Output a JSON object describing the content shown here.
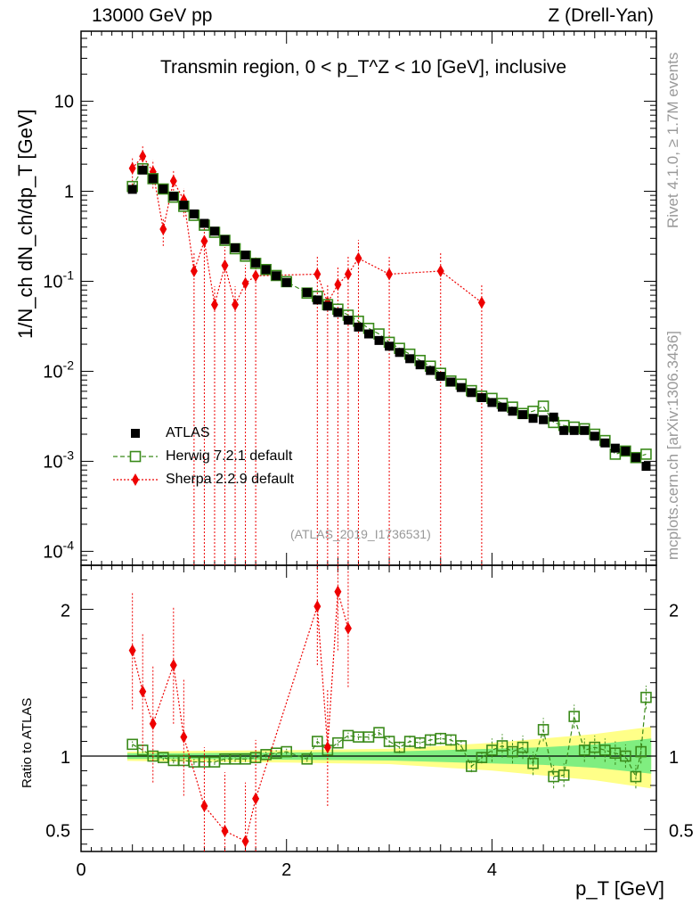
{
  "header": {
    "left": "13000 GeV pp",
    "right": "Z (Drell-Yan)",
    "main_title": "Transmin region, 0 < p_T^Z < 10 [GeV], inclusive",
    "watermark": "(ATLAS_2019_I1736531)"
  },
  "side_labels": {
    "rivet": "Rivet 4.1.0, ≥ 1.7M events",
    "mcplots": "mcplots.cern.ch [arXiv:1306.3436]"
  },
  "legend": {
    "data": "ATLAS",
    "herwig": "Herwig 7.2.1 default",
    "sherpa": "Sherpa 2.2.9 default"
  },
  "colors": {
    "data": "#000000",
    "herwig": "#3a8a1a",
    "sherpa": "#ee0000",
    "band_inner": "#80ee80",
    "band_outer": "#ffff88"
  },
  "chart_data": {
    "type": "scatter",
    "main_panel": {
      "xlabel": "p_T [GeV]",
      "ylabel": "1/N_ch dN_ch/dp_T [GeV]",
      "xlim": [
        0,
        5.6
      ],
      "ylim": [
        7e-05,
        60
      ],
      "yscale": "log",
      "yticks": [
        0.0001,
        0.001,
        0.01,
        0.1,
        1,
        10
      ],
      "ytick_labels": [
        "10^-4",
        "10^-3",
        "10^-2",
        "10^-1",
        "1",
        "10"
      ],
      "series": [
        {
          "name": "ATLAS",
          "x": [
            0.5,
            0.6,
            0.7,
            0.8,
            0.9,
            1.0,
            1.1,
            1.2,
            1.3,
            1.4,
            1.5,
            1.6,
            1.7,
            1.8,
            1.9,
            2.0,
            2.2,
            2.3,
            2.4,
            2.5,
            2.6,
            2.7,
            2.8,
            2.9,
            3.0,
            3.1,
            3.2,
            3.3,
            3.4,
            3.5,
            3.6,
            3.7,
            3.8,
            3.9,
            4.0,
            4.1,
            4.2,
            4.3,
            4.4,
            4.5,
            4.6,
            4.7,
            4.8,
            4.9,
            5.0,
            5.1,
            5.2,
            5.3,
            5.4,
            5.5
          ],
          "y": [
            1.05,
            1.72,
            1.38,
            1.06,
            0.88,
            0.7,
            0.56,
            0.44,
            0.36,
            0.29,
            0.235,
            0.195,
            0.16,
            0.135,
            0.115,
            0.097,
            0.075,
            0.062,
            0.053,
            0.045,
            0.037,
            0.031,
            0.026,
            0.022,
            0.019,
            0.0162,
            0.0138,
            0.0118,
            0.0102,
            0.0088,
            0.0076,
            0.0066,
            0.0058,
            0.0051,
            0.0045,
            0.004,
            0.0036,
            0.0033,
            0.003,
            0.0029,
            0.0031,
            0.0022,
            0.0022,
            0.0022,
            0.0019,
            0.0016,
            0.0014,
            0.0013,
            0.0011,
            0.00088
          ]
        },
        {
          "name": "Herwig 7.2.1 default",
          "x": [
            0.5,
            0.6,
            0.7,
            0.8,
            0.9,
            1.0,
            1.1,
            1.2,
            1.3,
            1.4,
            1.5,
            1.6,
            1.7,
            1.8,
            1.9,
            2.0,
            2.2,
            2.3,
            2.4,
            2.5,
            2.6,
            2.7,
            2.8,
            2.9,
            3.0,
            3.1,
            3.2,
            3.3,
            3.4,
            3.5,
            3.6,
            3.7,
            3.8,
            3.9,
            4.0,
            4.1,
            4.2,
            4.3,
            4.4,
            4.5,
            4.6,
            4.7,
            4.8,
            4.9,
            5.0,
            5.1,
            5.2,
            5.3,
            5.4,
            5.5
          ],
          "y": [
            1.13,
            1.78,
            1.38,
            1.06,
            0.86,
            0.68,
            0.54,
            0.42,
            0.35,
            0.285,
            0.23,
            0.19,
            0.158,
            0.135,
            0.116,
            0.099,
            0.074,
            0.068,
            0.055,
            0.049,
            0.042,
            0.036,
            0.03,
            0.026,
            0.021,
            0.018,
            0.0155,
            0.0132,
            0.0114,
            0.0095,
            0.0078,
            0.0072,
            0.0061,
            0.0053,
            0.005,
            0.0044,
            0.004,
            0.0034,
            0.0036,
            0.0041,
            0.0027,
            0.0025,
            0.0024,
            0.0023,
            0.002,
            0.0017,
            0.0012,
            0.0013,
            0.0011,
            0.0012
          ]
        },
        {
          "name": "Sherpa 2.2.9 default",
          "x": [
            0.5,
            0.6,
            0.7,
            0.8,
            0.9,
            1.0,
            1.1,
            1.2,
            1.3,
            1.4,
            1.5,
            1.6,
            1.7,
            2.3,
            2.4,
            2.5,
            2.6,
            2.7,
            3.0,
            3.5,
            3.9
          ],
          "y": [
            1.8,
            2.45,
            1.65,
            0.38,
            1.3,
            0.8,
            0.13,
            0.28,
            0.055,
            0.15,
            0.055,
            0.095,
            0.115,
            0.12,
            0.058,
            0.092,
            0.12,
            0.18,
            0.12,
            0.13,
            0.058
          ]
        }
      ]
    },
    "ratio_panel": {
      "ylabel": "Ratio to ATLAS",
      "ylim": [
        0.35,
        2.3
      ],
      "yticks": [
        0.5,
        1,
        2
      ],
      "ytick_labels": [
        "0.5",
        "1",
        "2"
      ],
      "xticks": [
        0,
        2,
        4
      ],
      "xtick_labels": [
        "0",
        "2",
        "4"
      ],
      "herwig_ratio": [
        1.08,
        1.04,
        1.0,
        0.99,
        0.97,
        0.97,
        0.96,
        0.96,
        0.96,
        0.98,
        0.98,
        0.98,
        0.99,
        1.01,
        1.02,
        1.03,
        0.98,
        1.1,
        1.04,
        1.09,
        1.14,
        1.13,
        1.13,
        1.16,
        1.1,
        1.06,
        1.1,
        1.09,
        1.11,
        1.12,
        1.11,
        1.07,
        0.93,
        0.99,
        1.04,
        1.07,
        1.03,
        1.06,
        0.95,
        1.18,
        0.86,
        0.87,
        1.27,
        1.04,
        1.06,
        1.04,
        1.02,
        1.0,
        0.86,
        1.03,
        1.4
      ],
      "herwig_ratio_x": [
        0.5,
        0.6,
        0.7,
        0.8,
        0.9,
        1.0,
        1.1,
        1.2,
        1.3,
        1.4,
        1.5,
        1.6,
        1.7,
        1.8,
        1.9,
        2.0,
        2.2,
        2.3,
        2.4,
        2.5,
        2.6,
        2.7,
        2.8,
        2.9,
        3.0,
        3.1,
        3.2,
        3.3,
        3.4,
        3.5,
        3.6,
        3.7,
        3.8,
        3.9,
        4.0,
        4.1,
        4.2,
        4.3,
        4.4,
        4.5,
        4.6,
        4.7,
        4.8,
        4.9,
        5.0,
        5.1,
        5.2,
        5.3,
        5.4,
        5.45,
        5.5
      ],
      "sherpa_ratio_x": [
        0.5,
        0.6,
        0.7,
        0.9,
        1.0,
        1.2,
        1.4,
        1.6,
        1.7,
        2.3,
        2.4,
        2.5,
        2.6
      ],
      "sherpa_ratio": [
        1.72,
        1.44,
        1.22,
        1.62,
        1.13,
        0.66,
        0.49,
        0.42,
        0.71,
        2.02,
        1.06,
        2.12,
        1.87
      ]
    }
  }
}
